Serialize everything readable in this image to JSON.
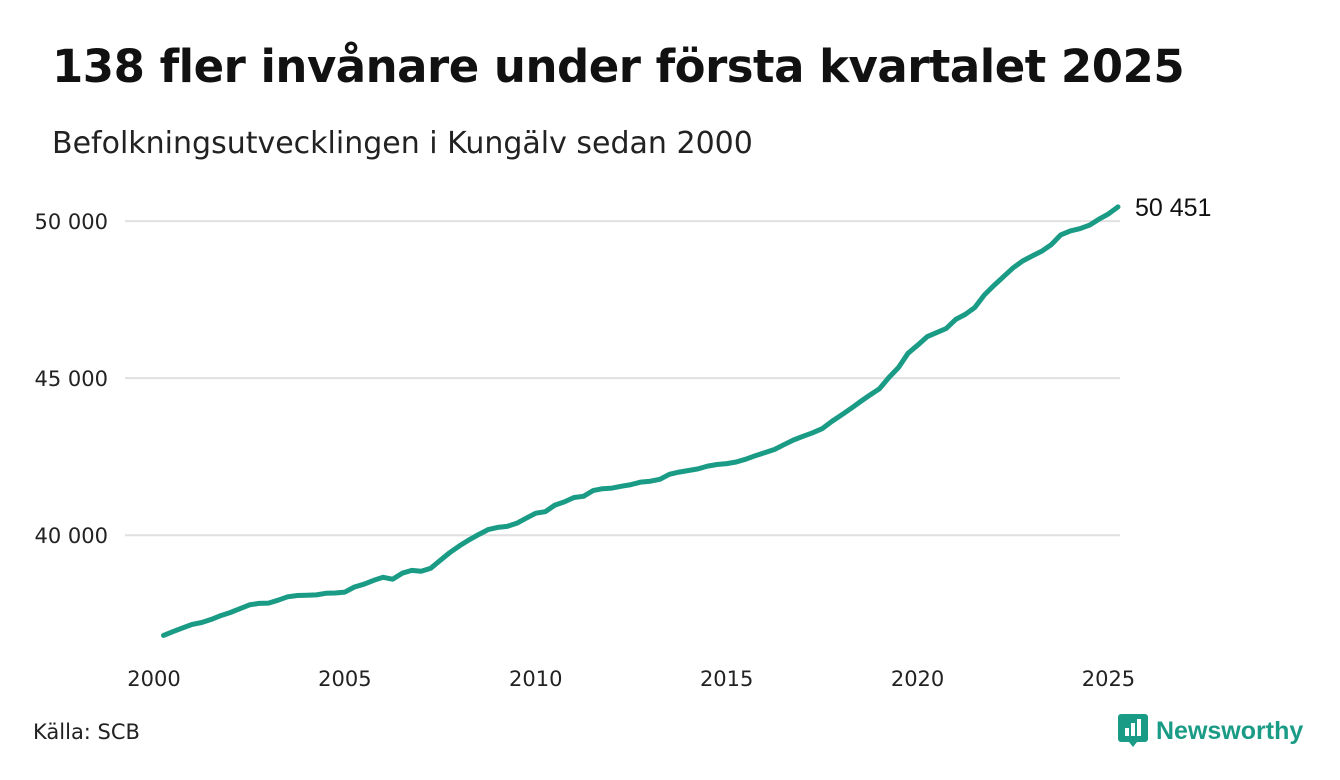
{
  "title": "138 fler invånare under första kvartalet 2025",
  "subtitle": "Befolkningsutvecklingen i Kungälv sedan 2000",
  "source": "Källa: SCB",
  "brand": {
    "name": "Newsworthy",
    "icon": "newsworthy-logo-icon",
    "color": "#1a9b85"
  },
  "chart_data": {
    "type": "line",
    "title": "138 fler invånare under första kvartalet 2025",
    "subtitle": "Befolkningsutvecklingen i Kungälv sedan 2000",
    "xlabel": "",
    "ylabel": "",
    "xlim": [
      2000,
      2025.25
    ],
    "ylim": [
      36600,
      51500
    ],
    "x_ticks": [
      2000,
      2005,
      2010,
      2015,
      2020,
      2025
    ],
    "x_tick_labels": [
      "2000",
      "2005",
      "2010",
      "2015",
      "2020",
      "2025"
    ],
    "y_ticks": [
      40000,
      45000,
      50000
    ],
    "y_tick_labels": [
      "40 000",
      "45 000",
      "50 000"
    ],
    "grid": "horizontal",
    "legend": "none",
    "line_color": "#1a9b85",
    "end_label": "50 451",
    "series": [
      {
        "x": [
          2000.25,
          2000.5,
          2000.75,
          2001,
          2001.25,
          2001.5,
          2001.75,
          2002,
          2002.25,
          2002.5,
          2002.75,
          2003,
          2003.25,
          2003.5,
          2003.75,
          2004,
          2004.25,
          2004.5,
          2004.75,
          2005,
          2005.25,
          2005.5,
          2005.75,
          2006,
          2006.25,
          2006.5,
          2006.75,
          2007,
          2007.25,
          2007.5,
          2007.75,
          2008,
          2008.25,
          2008.5,
          2008.75,
          2009,
          2009.25,
          2009.5,
          2009.75,
          2010,
          2010.25,
          2010.5,
          2010.75,
          2011,
          2011.25,
          2011.5,
          2011.75,
          2012,
          2012.25,
          2012.5,
          2012.75,
          2013,
          2013.25,
          2013.5,
          2013.75,
          2014,
          2014.25,
          2014.5,
          2014.75,
          2015,
          2015.25,
          2015.5,
          2015.75,
          2016,
          2016.25,
          2016.5,
          2016.75,
          2017,
          2017.25,
          2017.5,
          2017.75,
          2018,
          2018.25,
          2018.5,
          2018.75,
          2019,
          2019.25,
          2019.5,
          2019.75,
          2020,
          2020.25,
          2020.5,
          2020.75,
          2021,
          2021.25,
          2021.5,
          2021.75,
          2022,
          2022.25,
          2022.5,
          2022.75,
          2023,
          2023.25,
          2023.5,
          2023.75,
          2024,
          2024.25,
          2024.5,
          2024.75,
          2025,
          2025.25
        ],
        "values": [
          36810,
          36930,
          37050,
          37160,
          37220,
          37320,
          37440,
          37540,
          37660,
          37780,
          37830,
          37840,
          37930,
          38040,
          38080,
          38090,
          38100,
          38150,
          38160,
          38190,
          38350,
          38440,
          38560,
          38660,
          38600,
          38790,
          38880,
          38850,
          38950,
          39200,
          39450,
          39660,
          39850,
          40020,
          40180,
          40250,
          40280,
          40380,
          40540,
          40700,
          40750,
          40960,
          41060,
          41200,
          41240,
          41420,
          41480,
          41500,
          41560,
          41610,
          41690,
          41720,
          41780,
          41940,
          42010,
          42060,
          42110,
          42200,
          42250,
          42280,
          42330,
          42420,
          42530,
          42630,
          42730,
          42880,
          43030,
          43150,
          43260,
          43390,
          43620,
          43820,
          44030,
          44250,
          44460,
          44660,
          45020,
          45340,
          45790,
          46050,
          46320,
          46450,
          46580,
          46870,
          47030,
          47250,
          47650,
          47950,
          48230,
          48510,
          48730,
          48890,
          49040,
          49250,
          49560,
          49690,
          49760,
          49870,
          50060,
          50230,
          50451
        ]
      }
    ]
  }
}
